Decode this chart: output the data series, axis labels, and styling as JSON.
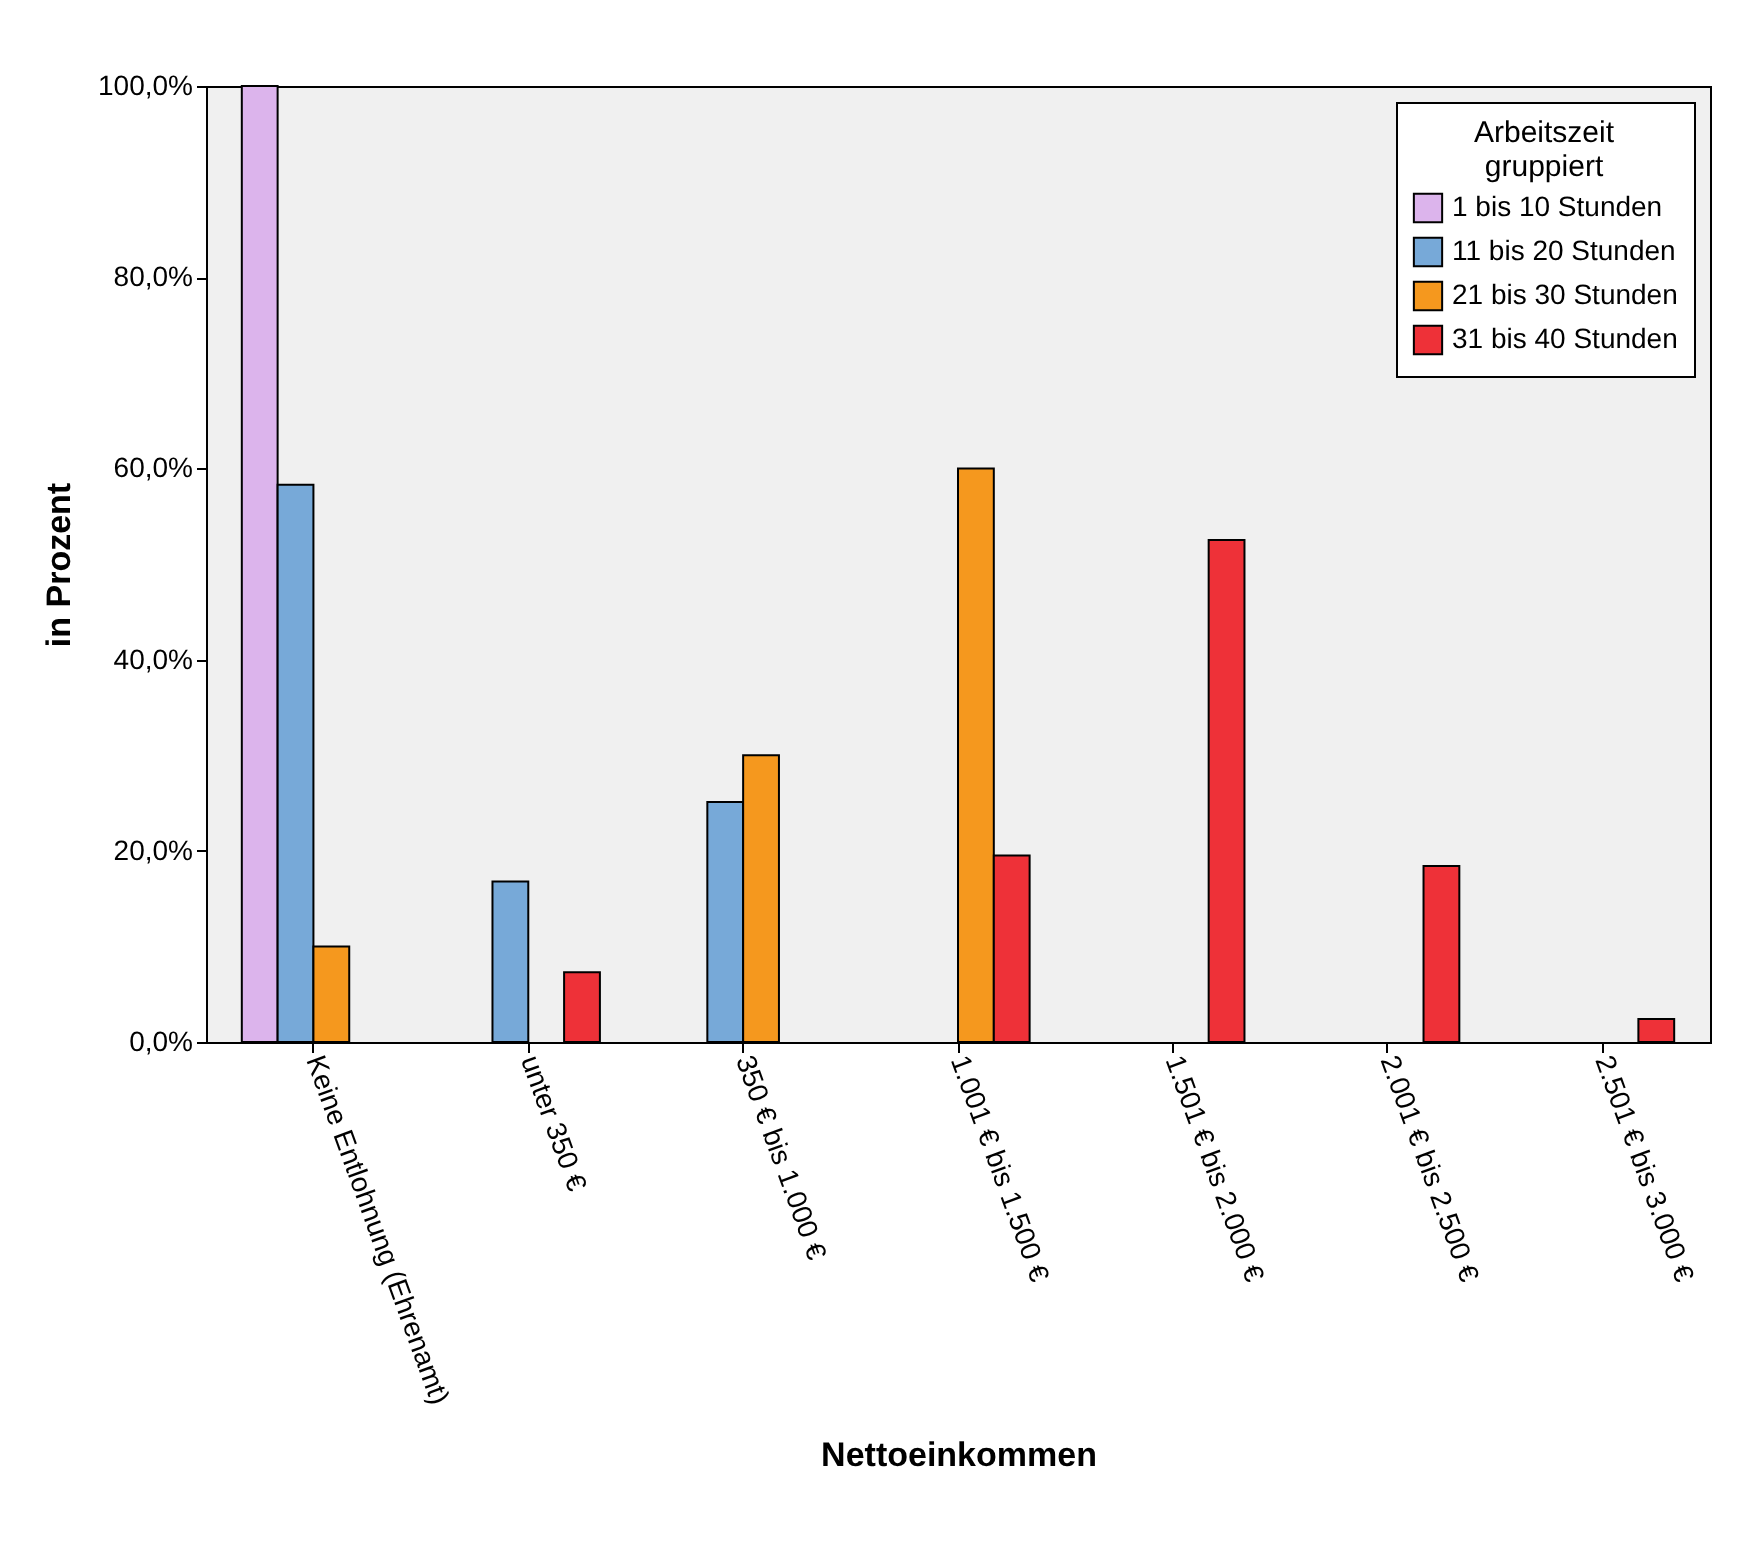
{
  "chart_data": {
    "type": "bar",
    "xlabel": "Nettoeinkommen",
    "ylabel": "in Prozent",
    "legend_title": "Arbeitszeit\ngruppiert",
    "legend": "top right",
    "grid": false,
    "categories": [
      "Keine Entlohnung\n(Ehrenamt)",
      "unter 350 €",
      "350 € bis 1.000 €",
      "1.001 € bis 1.500 €",
      "1.501 € bis 2.000 €",
      "2.001 € bis 2.500 €",
      "2.501 € bis 3.000 €"
    ],
    "ylim": [
      0,
      100
    ],
    "yticks": [
      {
        "value": 0,
        "label": "0,0%"
      },
      {
        "value": 20,
        "label": "20,0%"
      },
      {
        "value": 40,
        "label": "40,0%"
      },
      {
        "value": 60,
        "label": "60,0%"
      },
      {
        "value": 80,
        "label": "80,0%"
      },
      {
        "value": 100,
        "label": "100,0%"
      }
    ],
    "series": [
      {
        "name": "1 bis 10 Stunden",
        "color": "#dcb4ec",
        "values": [
          100,
          null,
          null,
          null,
          null,
          null,
          null
        ]
      },
      {
        "name": "11 bis 20 Stunden",
        "color": "#77a9d8",
        "values": [
          58.3,
          16.8,
          25.1,
          null,
          null,
          null,
          null
        ]
      },
      {
        "name": "21 bis 30 Stunden",
        "color": "#f5981e",
        "values": [
          10.0,
          null,
          30.0,
          60.0,
          null,
          null,
          null
        ]
      },
      {
        "name": "31 bis 40 Stunden",
        "color": "#ee3138",
        "values": [
          null,
          7.3,
          null,
          19.5,
          52.5,
          18.4,
          2.4
        ]
      }
    ]
  }
}
